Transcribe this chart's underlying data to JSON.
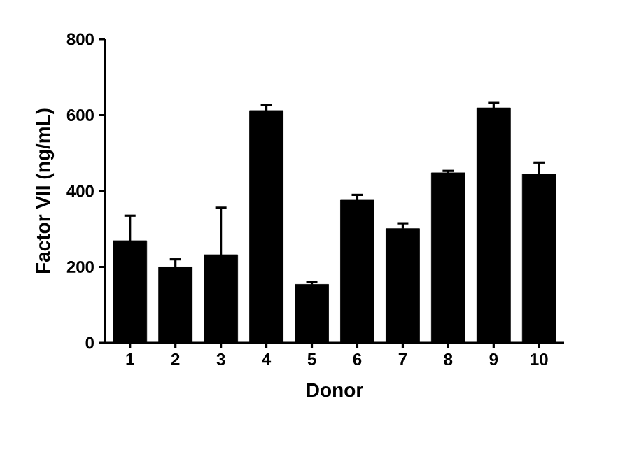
{
  "chart_data": {
    "type": "bar",
    "xlabel": "Donor",
    "ylabel": "Factor VII (ng/mL)",
    "categories": [
      "1",
      "2",
      "3",
      "4",
      "5",
      "6",
      "7",
      "8",
      "9",
      "10"
    ],
    "values": [
      269,
      200,
      232,
      612,
      154,
      376,
      301,
      448,
      619,
      445
    ],
    "errors": [
      66,
      20,
      124,
      15,
      6,
      14,
      14,
      5,
      13,
      30
    ],
    "color": "#000000",
    "ylim": [
      0,
      800
    ],
    "yticks": [
      0,
      200,
      400,
      600,
      800
    ],
    "grid": false
  }
}
